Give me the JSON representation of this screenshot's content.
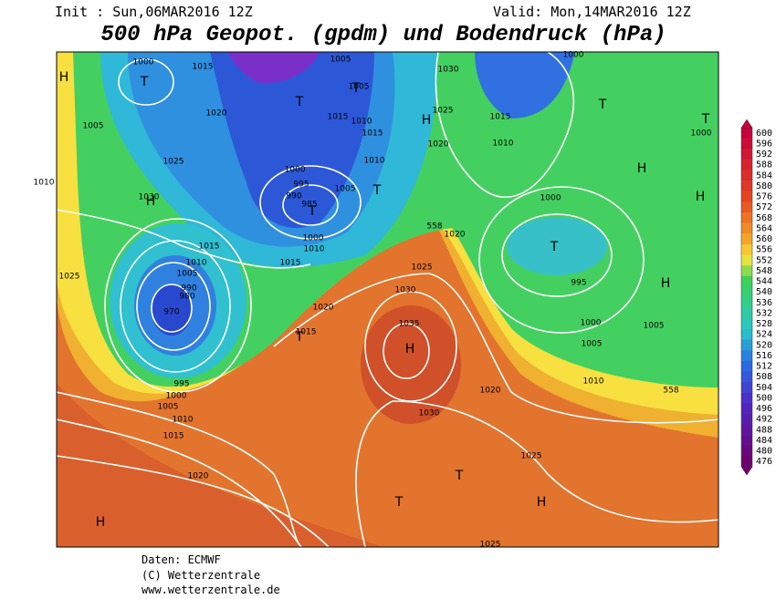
{
  "header": {
    "init": "Init : Sun,06MAR2016 12Z",
    "valid": "Valid: Mon,14MAR2016 12Z",
    "title": "500 hPa Geopot. (gpdm) und Bodendruck (hPa)"
  },
  "colorbar": {
    "levels": [
      600,
      596,
      592,
      588,
      584,
      580,
      576,
      572,
      568,
      564,
      560,
      556,
      552,
      548,
      544,
      540,
      536,
      532,
      528,
      524,
      520,
      516,
      512,
      508,
      504,
      500,
      496,
      492,
      488,
      484,
      480,
      476
    ]
  },
  "map_labels": [
    "H",
    "T",
    "1000",
    "1015",
    "1005",
    "1020",
    "1025",
    "1010",
    "1030",
    "H",
    "1025",
    "1015",
    "1010",
    "1005",
    "990",
    "980",
    "970",
    "995",
    "1000",
    "1005",
    "1010",
    "1015",
    "1020",
    "T",
    "1015",
    "1020",
    "1015",
    "1000",
    "995",
    "990",
    "985",
    "T",
    "1000",
    "1010",
    "T",
    "1005",
    "T",
    "1005",
    "1015",
    "1010",
    "1015",
    "1010",
    "1005",
    "T",
    "1030",
    "1025",
    "H",
    "1020",
    "1015",
    "1010",
    "T",
    "T",
    "1000",
    "H",
    "H",
    "1000",
    "T",
    "995",
    "H",
    "1000",
    "1005",
    "1005",
    "1010",
    "558",
    "1020",
    "558",
    "1025",
    "1030",
    "1035",
    "H",
    "1030",
    "1020",
    "1025",
    "T",
    "T",
    "H",
    "H",
    "1025",
    "1000"
  ],
  "footer": [
    "Daten: ECMWF",
    "(C) Wetterzentrale",
    "www.wetterzentrale.de"
  ]
}
